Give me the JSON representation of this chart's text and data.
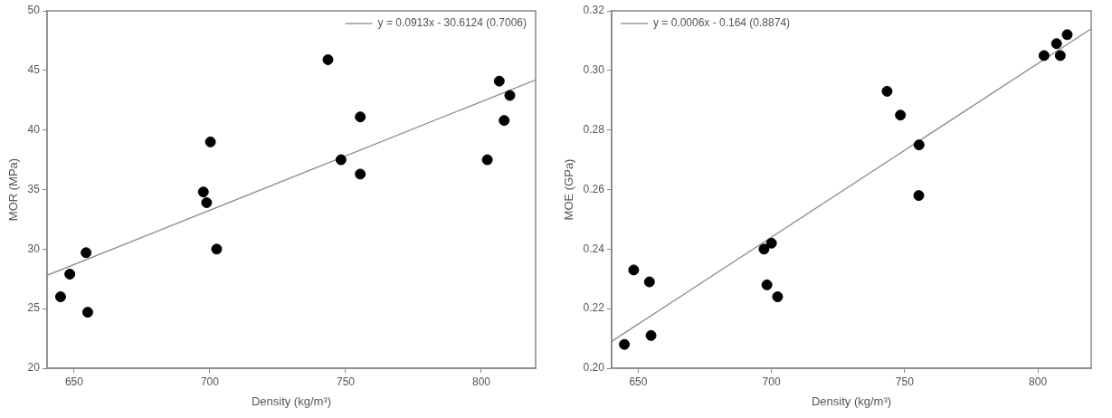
{
  "chart_data": [
    {
      "type": "scatter",
      "xlabel": "Density (kg/m³)",
      "ylabel": "MOR (MPa)",
      "xlim": [
        640,
        820
      ],
      "ylim": [
        20,
        50
      ],
      "xticks": [
        650,
        700,
        750,
        800
      ],
      "yticks": [
        20,
        25,
        30,
        35,
        40,
        45,
        50
      ],
      "grid": false,
      "legend": "top right",
      "series": [
        {
          "marker": "circle",
          "color": "#000000",
          "x": [
            645.0,
            648.4,
            654.4,
            655.0,
            697.6,
            698.8,
            700.2,
            702.5,
            743.5,
            748.3,
            755.4,
            755.4,
            802.2,
            806.6,
            810.5,
            808.4
          ],
          "values": [
            26.0,
            27.9,
            29.7,
            24.7,
            34.8,
            33.9,
            39.0,
            30.0,
            45.9,
            37.5,
            41.1,
            36.3,
            37.5,
            44.1,
            42.9,
            40.8
          ]
        },
        {
          "type": "line",
          "marker": "none",
          "name": "y = 0.0913x - 30.6124 (0.7006)",
          "color": "#8c8c8c",
          "x": [
            640,
            820
          ],
          "values": [
            27.8,
            44.2
          ]
        }
      ]
    },
    {
      "type": "scatter",
      "xlabel": "Density (kg/m³)",
      "ylabel": "MOE (GPa)",
      "xlim": [
        640,
        820
      ],
      "ylim": [
        0.2,
        0.32
      ],
      "xticks": [
        650,
        700,
        750,
        800
      ],
      "yticks": [
        {
          "value": 0.2,
          "label": "0.20"
        },
        {
          "value": 0.22,
          "label": "0.22"
        },
        {
          "value": 0.24,
          "label": "0.24"
        },
        {
          "value": 0.26,
          "label": "0.26"
        },
        {
          "value": 0.28,
          "label": "0.28"
        },
        {
          "value": 0.3,
          "label": "0.30"
        },
        {
          "value": 0.32,
          "label": "0.32"
        }
      ],
      "grid": false,
      "legend": "top left",
      "series": [
        {
          "marker": "circle",
          "color": "#000000",
          "x": [
            644.8,
            648.3,
            654.2,
            654.8,
            697.2,
            700.0,
            698.3,
            702.3,
            743.4,
            748.4,
            755.4,
            755.3,
            802.3,
            807.0,
            808.4,
            811.0
          ],
          "values": [
            0.208,
            0.233,
            0.229,
            0.211,
            0.24,
            0.242,
            0.228,
            0.224,
            0.293,
            0.285,
            0.275,
            0.258,
            0.305,
            0.309,
            0.305,
            0.312
          ]
        },
        {
          "type": "line",
          "marker": "none",
          "name": "y = 0.0006x - 0.164 (0.8874)",
          "color": "#8c8c8c",
          "x": [
            640,
            820
          ],
          "values": [
            0.209,
            0.314
          ]
        }
      ]
    }
  ]
}
